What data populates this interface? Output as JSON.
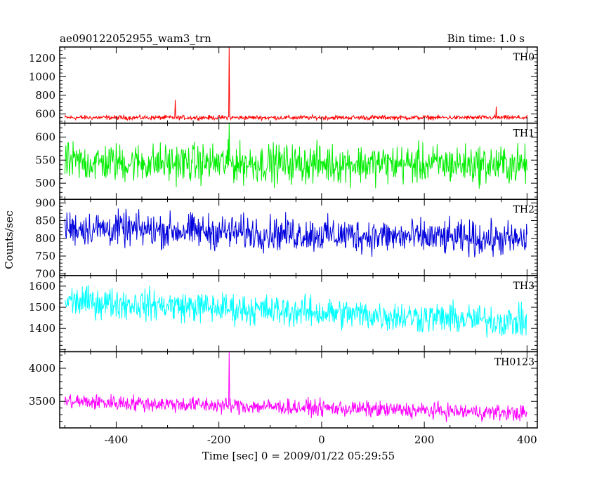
{
  "chart_data": {
    "type": "line",
    "title": "ae090122052955_wam3_trn",
    "bin_time": "Bin time: 1.0 s",
    "xlabel": "Time [sec] 0 = 2009/01/22 05:29:55",
    "ylabel": "Counts/sec",
    "xlim": [
      -510,
      420
    ],
    "xticks": [
      -400,
      -200,
      0,
      200,
      400
    ],
    "x_data_range": [
      -500,
      400
    ],
    "panels": [
      {
        "name": "TH0",
        "color": "#ff0000",
        "ylim": [
          500,
          1320
        ],
        "yticks": [
          600,
          800,
          1000,
          1200
        ],
        "baseline": 560,
        "noise": 15,
        "trend_start": 560,
        "trend_end": 560,
        "peaks": [
          {
            "x": -180,
            "y": 1320
          },
          {
            "x": -285,
            "y": 750
          },
          {
            "x": 340,
            "y": 680
          }
        ]
      },
      {
        "name": "TH1",
        "color": "#00ee00",
        "ylim": [
          465,
          630
        ],
        "yticks": [
          500,
          550,
          600
        ],
        "baseline": 540,
        "noise": 26,
        "trend_start": 545,
        "trend_end": 540,
        "peaks": [
          {
            "x": -180,
            "y": 630
          }
        ]
      },
      {
        "name": "TH2",
        "color": "#0000dd",
        "ylim": [
          695,
          910
        ],
        "yticks": [
          700,
          750,
          800,
          850,
          900
        ],
        "baseline": 800,
        "noise": 30,
        "trend_start": 830,
        "trend_end": 795,
        "peaks": []
      },
      {
        "name": "TH3",
        "color": "#00ffff",
        "ylim": [
          1290,
          1650
        ],
        "yticks": [
          1400,
          1500,
          1600
        ],
        "baseline": 1460,
        "noise": 45,
        "trend_start": 1530,
        "trend_end": 1430,
        "peaks": []
      },
      {
        "name": "TH0123",
        "color": "#ff00ff",
        "ylim": [
          3100,
          4250
        ],
        "yticks": [
          3500,
          4000
        ],
        "baseline": 3380,
        "noise": 75,
        "trend_start": 3500,
        "trend_end": 3320,
        "peaks": [
          {
            "x": -180,
            "y": 4250
          }
        ]
      }
    ]
  }
}
